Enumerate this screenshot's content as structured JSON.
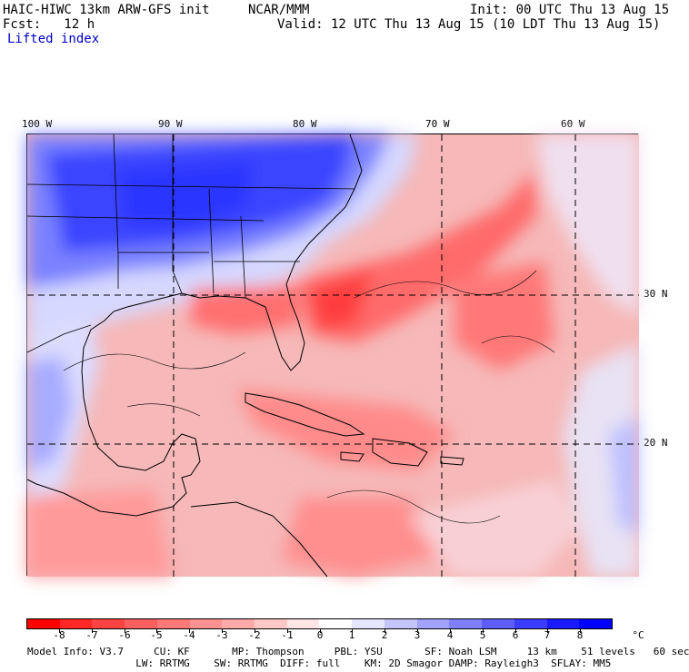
{
  "header": {
    "title": "HAIC-HIWC 13km ARW-GFS init",
    "org": "NCAR/MMM",
    "init": "Init: 00 UTC Thu 13 Aug 15",
    "fcst": "Fcst:   12 h",
    "valid": "Valid: 12 UTC Thu 13 Aug 15 (10 LDT Thu 13 Aug 15)",
    "field": "Lifted index"
  },
  "axes": {
    "lon_labels": [
      "100 W",
      "90 W",
      "80 W",
      "70 W",
      "60 W"
    ],
    "lat_labels": [
      "30 N",
      "20 N"
    ]
  },
  "colorbar": {
    "labels": [
      "-8",
      "-7",
      "-6",
      "-5",
      "-4",
      "-3",
      "-2",
      "-1",
      "0",
      "1",
      "2",
      "3",
      "4",
      "5",
      "6",
      "7",
      "8"
    ],
    "unit": "°C",
    "colors": [
      "#ff0000",
      "#ff2626",
      "#ff4343",
      "#ff5f5f",
      "#ff7878",
      "#ff9191",
      "#ffaaaa",
      "#ffc8c8",
      "#ffe6e6",
      "#ffffff",
      "#e6e6ff",
      "#c4c4ff",
      "#a2a2ff",
      "#8080ff",
      "#5e5eff",
      "#3c3cff",
      "#1a1aff",
      "#0000ff"
    ]
  },
  "footer": {
    "line1": "Model Info: V3.7     CU: KF       MP: Thompson     PBL: YSU       SF: Noah LSM     13 km    51 levels   60 sec",
    "line2": "                  LW: RRTMG    SW: RRTMG  DIFF: full    KM: 2D Smagor DAMP: Rayleigh3  SFLAY: MM5"
  }
}
